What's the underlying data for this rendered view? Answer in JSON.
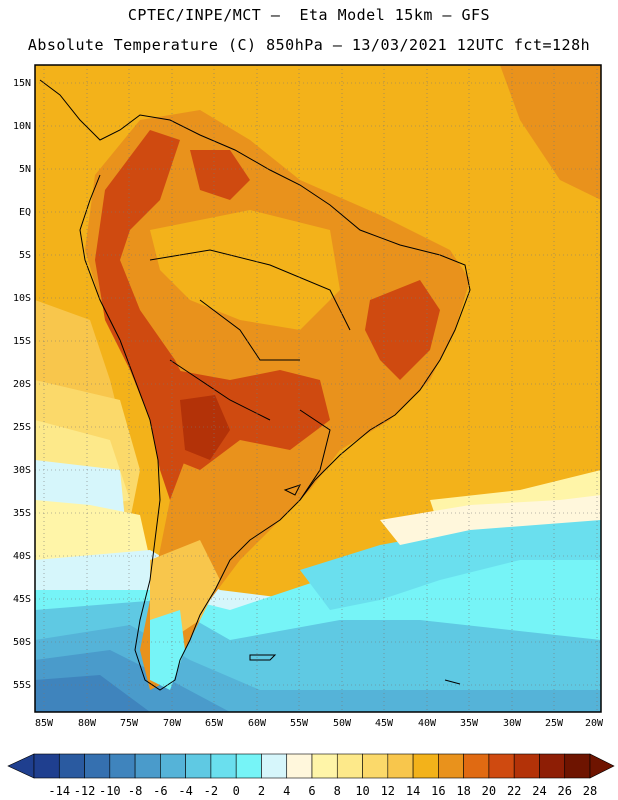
{
  "header": {
    "line1": "CPTEC/INPE/MCT –  Eta Model 15km – GFS",
    "line2": "Absolute Temperature (C) 850hPa – 13/03/2021 12UTC fct=128h"
  },
  "axes": {
    "lat_labels": [
      "15N",
      "10N",
      "5N",
      "EQ",
      "5S",
      "10S",
      "15S",
      "20S",
      "25S",
      "30S",
      "35S",
      "40S",
      "45S",
      "50S",
      "55S"
    ],
    "lon_labels": [
      "85W",
      "80W",
      "75W",
      "70W",
      "65W",
      "60W",
      "55W",
      "50W",
      "45W",
      "40W",
      "35W",
      "30W",
      "25W",
      "20W"
    ]
  },
  "colorbar": {
    "labels": [
      "-14",
      "-12",
      "-10",
      "-8",
      "-6",
      "-4",
      "-2",
      "0",
      "2",
      "4",
      "6",
      "8",
      "10",
      "12",
      "14",
      "16",
      "18",
      "20",
      "22",
      "24",
      "26",
      "28"
    ],
    "colors": [
      "#1f3f8f",
      "#2a5aa0",
      "#3570b0",
      "#3f84bd",
      "#4a9bcb",
      "#55b3d8",
      "#5fc9e3",
      "#6adfee",
      "#76f4f7",
      "#d6f6fb",
      "#fff7dc",
      "#fff5a8",
      "#fde98a",
      "#fbd96a",
      "#f8c64c",
      "#f3b21a",
      "#e9921c",
      "#e06a12",
      "#cf4a10",
      "#b33208",
      "#8e1e05",
      "#6e1400"
    ]
  }
}
